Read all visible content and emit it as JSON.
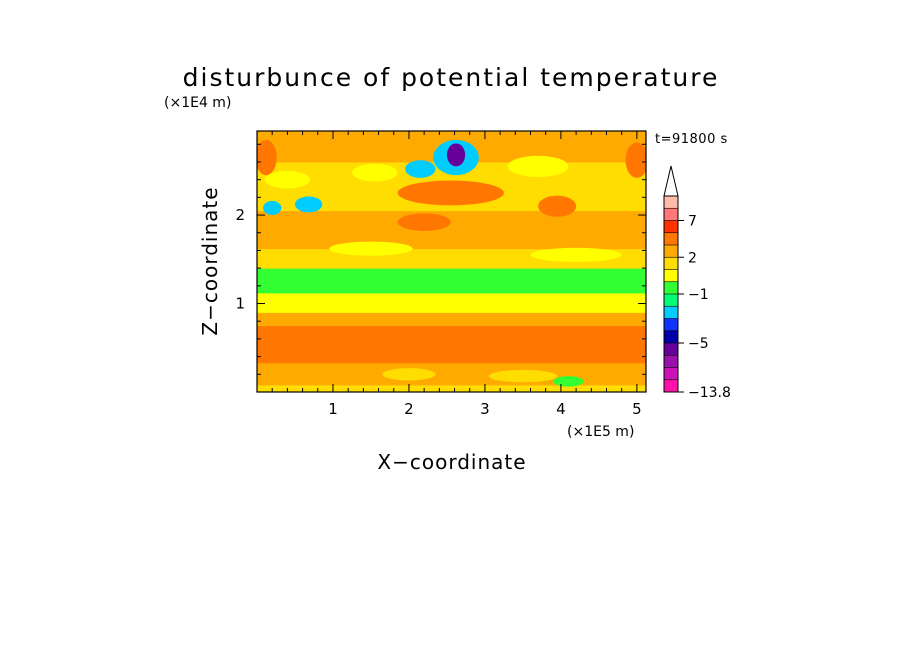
{
  "chart_data": {
    "type": "heatmap",
    "title": "disturbunce of potential temperature",
    "time_label": "t=91800 s",
    "xlabel": "X−coordinate",
    "ylabel": "Z−coordinate",
    "x_scale_label": "(×1E5 m)",
    "y_scale_label": "(×1E4 m)",
    "xlim": [
      0,
      5.12
    ],
    "ylim": [
      0,
      2.95
    ],
    "x_ticks": [
      1,
      2,
      3,
      4,
      5
    ],
    "x_tick_labels": [
      "1",
      "2",
      "3",
      "4",
      "5"
    ],
    "y_ticks": [
      1,
      2
    ],
    "y_tick_labels": [
      "1",
      "2"
    ],
    "colorbar": {
      "labels": [
        {
          "text": "7",
          "value": 7
        },
        {
          "text": "2",
          "value": 2
        },
        {
          "text": "−1",
          "value": -1
        },
        {
          "text": "−5",
          "value": -5
        },
        {
          "text": "−13.8",
          "value": -13.8
        }
      ],
      "levels": [
        -13.8,
        -9,
        -7,
        -6,
        -5,
        -4,
        -3,
        -2,
        -1,
        0,
        1,
        2,
        3,
        5,
        7,
        9,
        12
      ],
      "colors": [
        "#ff11aa",
        "#cc11bb",
        "#9911aa",
        "#660099",
        "#0000aa",
        "#1133ff",
        "#00ccff",
        "#00ff77",
        "#33ff33",
        "#ffff00",
        "#ffdd00",
        "#ffaa00",
        "#ff7700",
        "#ff3300",
        "#ff7777",
        "#ffbbaa"
      ],
      "extend": "max"
    },
    "bands": [
      {
        "z": [
          0.0,
          0.08
        ],
        "level": 1
      },
      {
        "z": [
          0.08,
          0.33
        ],
        "level": 2
      },
      {
        "z": [
          0.33,
          0.75
        ],
        "level": 3
      },
      {
        "z": [
          0.75,
          0.9
        ],
        "level": 2
      },
      {
        "z": [
          0.9,
          1.12
        ],
        "level": 0
      },
      {
        "z": [
          1.12,
          1.4
        ],
        "level": -1
      },
      {
        "z": [
          1.4,
          1.62
        ],
        "level": 1
      },
      {
        "z": [
          1.62,
          2.05
        ],
        "level": 2
      },
      {
        "z": [
          2.05,
          2.6
        ],
        "level": 1
      },
      {
        "z": [
          2.6,
          2.95
        ],
        "level": 2
      }
    ],
    "features": [
      {
        "shape": "ellipse",
        "x": 0.12,
        "z": 2.65,
        "rx": 0.14,
        "rz": 0.2,
        "level": 3
      },
      {
        "shape": "ellipse",
        "x": 5.0,
        "z": 2.62,
        "rx": 0.15,
        "rz": 0.2,
        "level": 3
      },
      {
        "shape": "ellipse",
        "x": 0.2,
        "z": 2.08,
        "rx": 0.12,
        "rz": 0.08,
        "level": -3
      },
      {
        "shape": "ellipse",
        "x": 0.68,
        "z": 2.12,
        "rx": 0.18,
        "rz": 0.09,
        "level": -3
      },
      {
        "shape": "ellipse",
        "x": 2.15,
        "z": 2.52,
        "rx": 0.2,
        "rz": 0.1,
        "level": -3
      },
      {
        "shape": "ellipse",
        "x": 2.62,
        "z": 2.65,
        "rx": 0.3,
        "rz": 0.2,
        "level": -3
      },
      {
        "shape": "ellipse",
        "x": 2.62,
        "z": 2.68,
        "rx": 0.12,
        "rz": 0.13,
        "level": -6
      },
      {
        "shape": "ellipse",
        "x": 2.55,
        "z": 2.25,
        "rx": 0.7,
        "rz": 0.14,
        "level": 3
      },
      {
        "shape": "ellipse",
        "x": 2.2,
        "z": 1.92,
        "rx": 0.35,
        "rz": 0.1,
        "level": 3
      },
      {
        "shape": "ellipse",
        "x": 3.95,
        "z": 2.1,
        "rx": 0.25,
        "rz": 0.12,
        "level": 3
      },
      {
        "shape": "ellipse",
        "x": 2.7,
        "z": 0.55,
        "rx": 1.9,
        "rz": 0.1,
        "level": 3
      },
      {
        "shape": "ellipse",
        "x": 4.6,
        "z": 0.6,
        "rx": 0.4,
        "rz": 0.1,
        "level": 3
      },
      {
        "shape": "ellipse",
        "x": 1.5,
        "z": 1.62,
        "rx": 0.55,
        "rz": 0.08,
        "level": 0
      },
      {
        "shape": "ellipse",
        "x": 4.2,
        "z": 1.55,
        "rx": 0.6,
        "rz": 0.08,
        "level": 0
      },
      {
        "shape": "ellipse",
        "x": 1.55,
        "z": 2.48,
        "rx": 0.3,
        "rz": 0.1,
        "level": 0
      },
      {
        "shape": "ellipse",
        "x": 3.7,
        "z": 2.55,
        "rx": 0.4,
        "rz": 0.12,
        "level": 0
      },
      {
        "shape": "ellipse",
        "x": 0.4,
        "z": 2.4,
        "rx": 0.3,
        "rz": 0.1,
        "level": 0
      },
      {
        "shape": "ellipse",
        "x": 2.0,
        "z": 0.2,
        "rx": 0.35,
        "rz": 0.07,
        "level": 1
      },
      {
        "shape": "ellipse",
        "x": 3.5,
        "z": 0.18,
        "rx": 0.45,
        "rz": 0.07,
        "level": 1
      },
      {
        "shape": "ellipse",
        "x": 4.1,
        "z": 0.12,
        "rx": 0.2,
        "rz": 0.06,
        "level": -1
      }
    ]
  }
}
